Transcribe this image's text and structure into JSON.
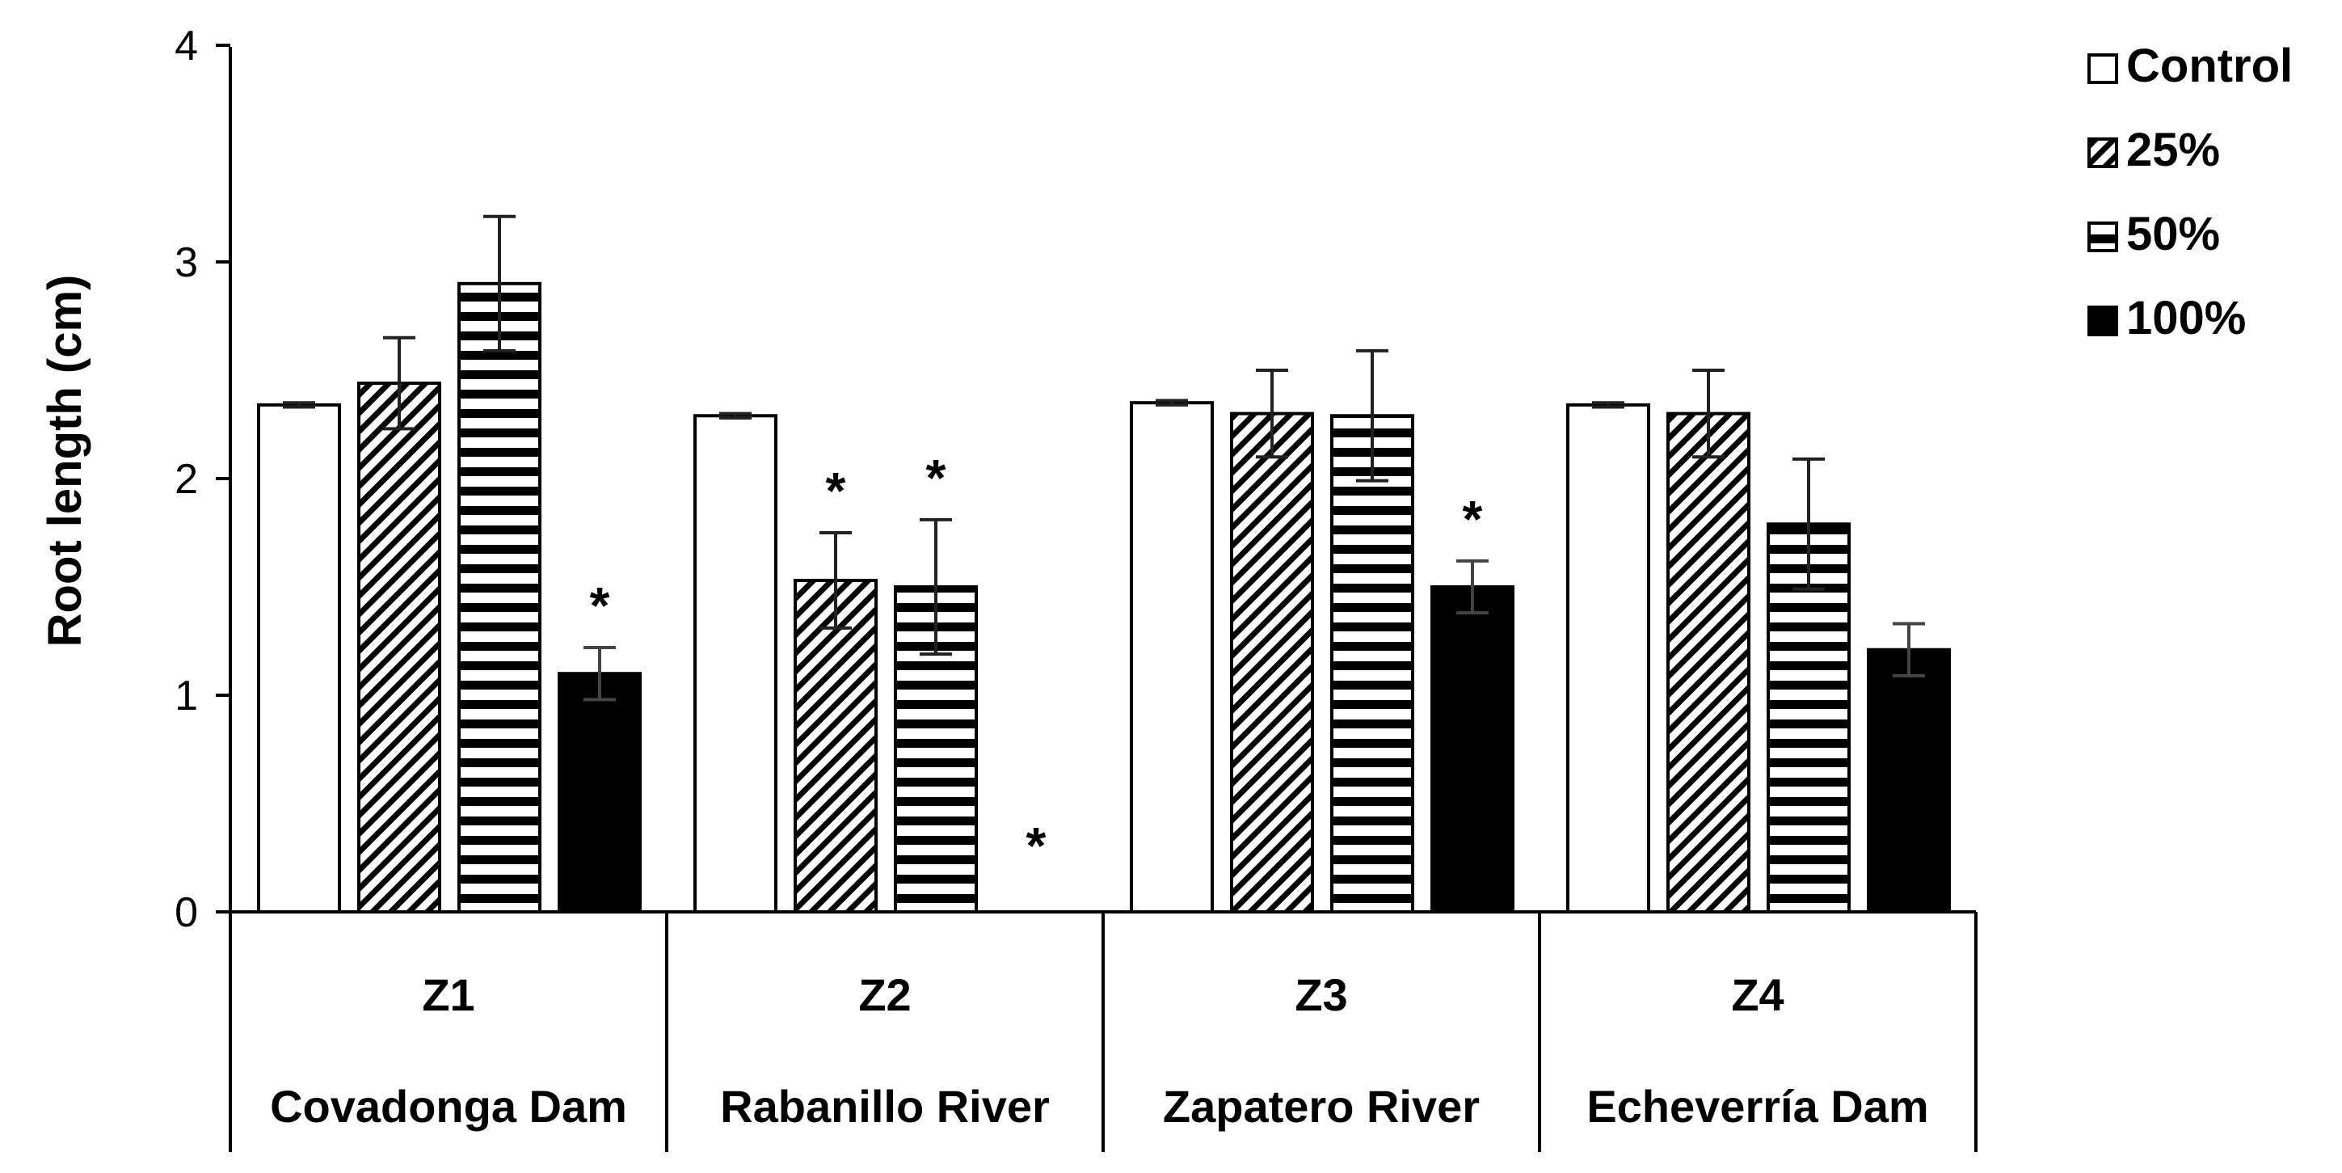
{
  "chart_data": {
    "type": "bar",
    "title": "",
    "ylabel": "Root length (cm)",
    "xlabel": "",
    "ylim": [
      0,
      4
    ],
    "yticks": [
      "0",
      "1",
      "2",
      "3",
      "4"
    ],
    "groups": [
      {
        "code": "Z1",
        "site": "Covadonga Dam"
      },
      {
        "code": "Z2",
        "site": "Rabanillo River"
      },
      {
        "code": "Z3",
        "site": "Zapatero  River"
      },
      {
        "code": "Z4",
        "site": "Echeverría Dam"
      }
    ],
    "series": [
      {
        "name": "Control",
        "pattern": "open",
        "values": [
          2.34,
          2.29,
          2.35,
          2.34
        ],
        "errors": [
          0.01,
          0.01,
          0.01,
          0.01
        ],
        "significant": [
          false,
          false,
          false,
          false
        ]
      },
      {
        "name": "25%",
        "pattern": "diagonal",
        "values": [
          2.44,
          1.53,
          2.3,
          2.3
        ],
        "errors": [
          0.21,
          0.22,
          0.2,
          0.2
        ],
        "significant": [
          false,
          true,
          false,
          false
        ]
      },
      {
        "name": "50%",
        "pattern": "horizontal",
        "values": [
          2.9,
          1.5,
          2.29,
          1.79
        ],
        "errors": [
          0.31,
          0.31,
          0.3,
          0.3
        ],
        "significant": [
          false,
          true,
          false,
          false
        ]
      },
      {
        "name": "100%",
        "pattern": "solid",
        "values": [
          1.1,
          0,
          1.5,
          1.21
        ],
        "errors": [
          0.12,
          0,
          0.12,
          0.12
        ],
        "significant": [
          true,
          true,
          true,
          false
        ]
      }
    ],
    "significance_marker": "*",
    "legend_position": "top-right"
  }
}
